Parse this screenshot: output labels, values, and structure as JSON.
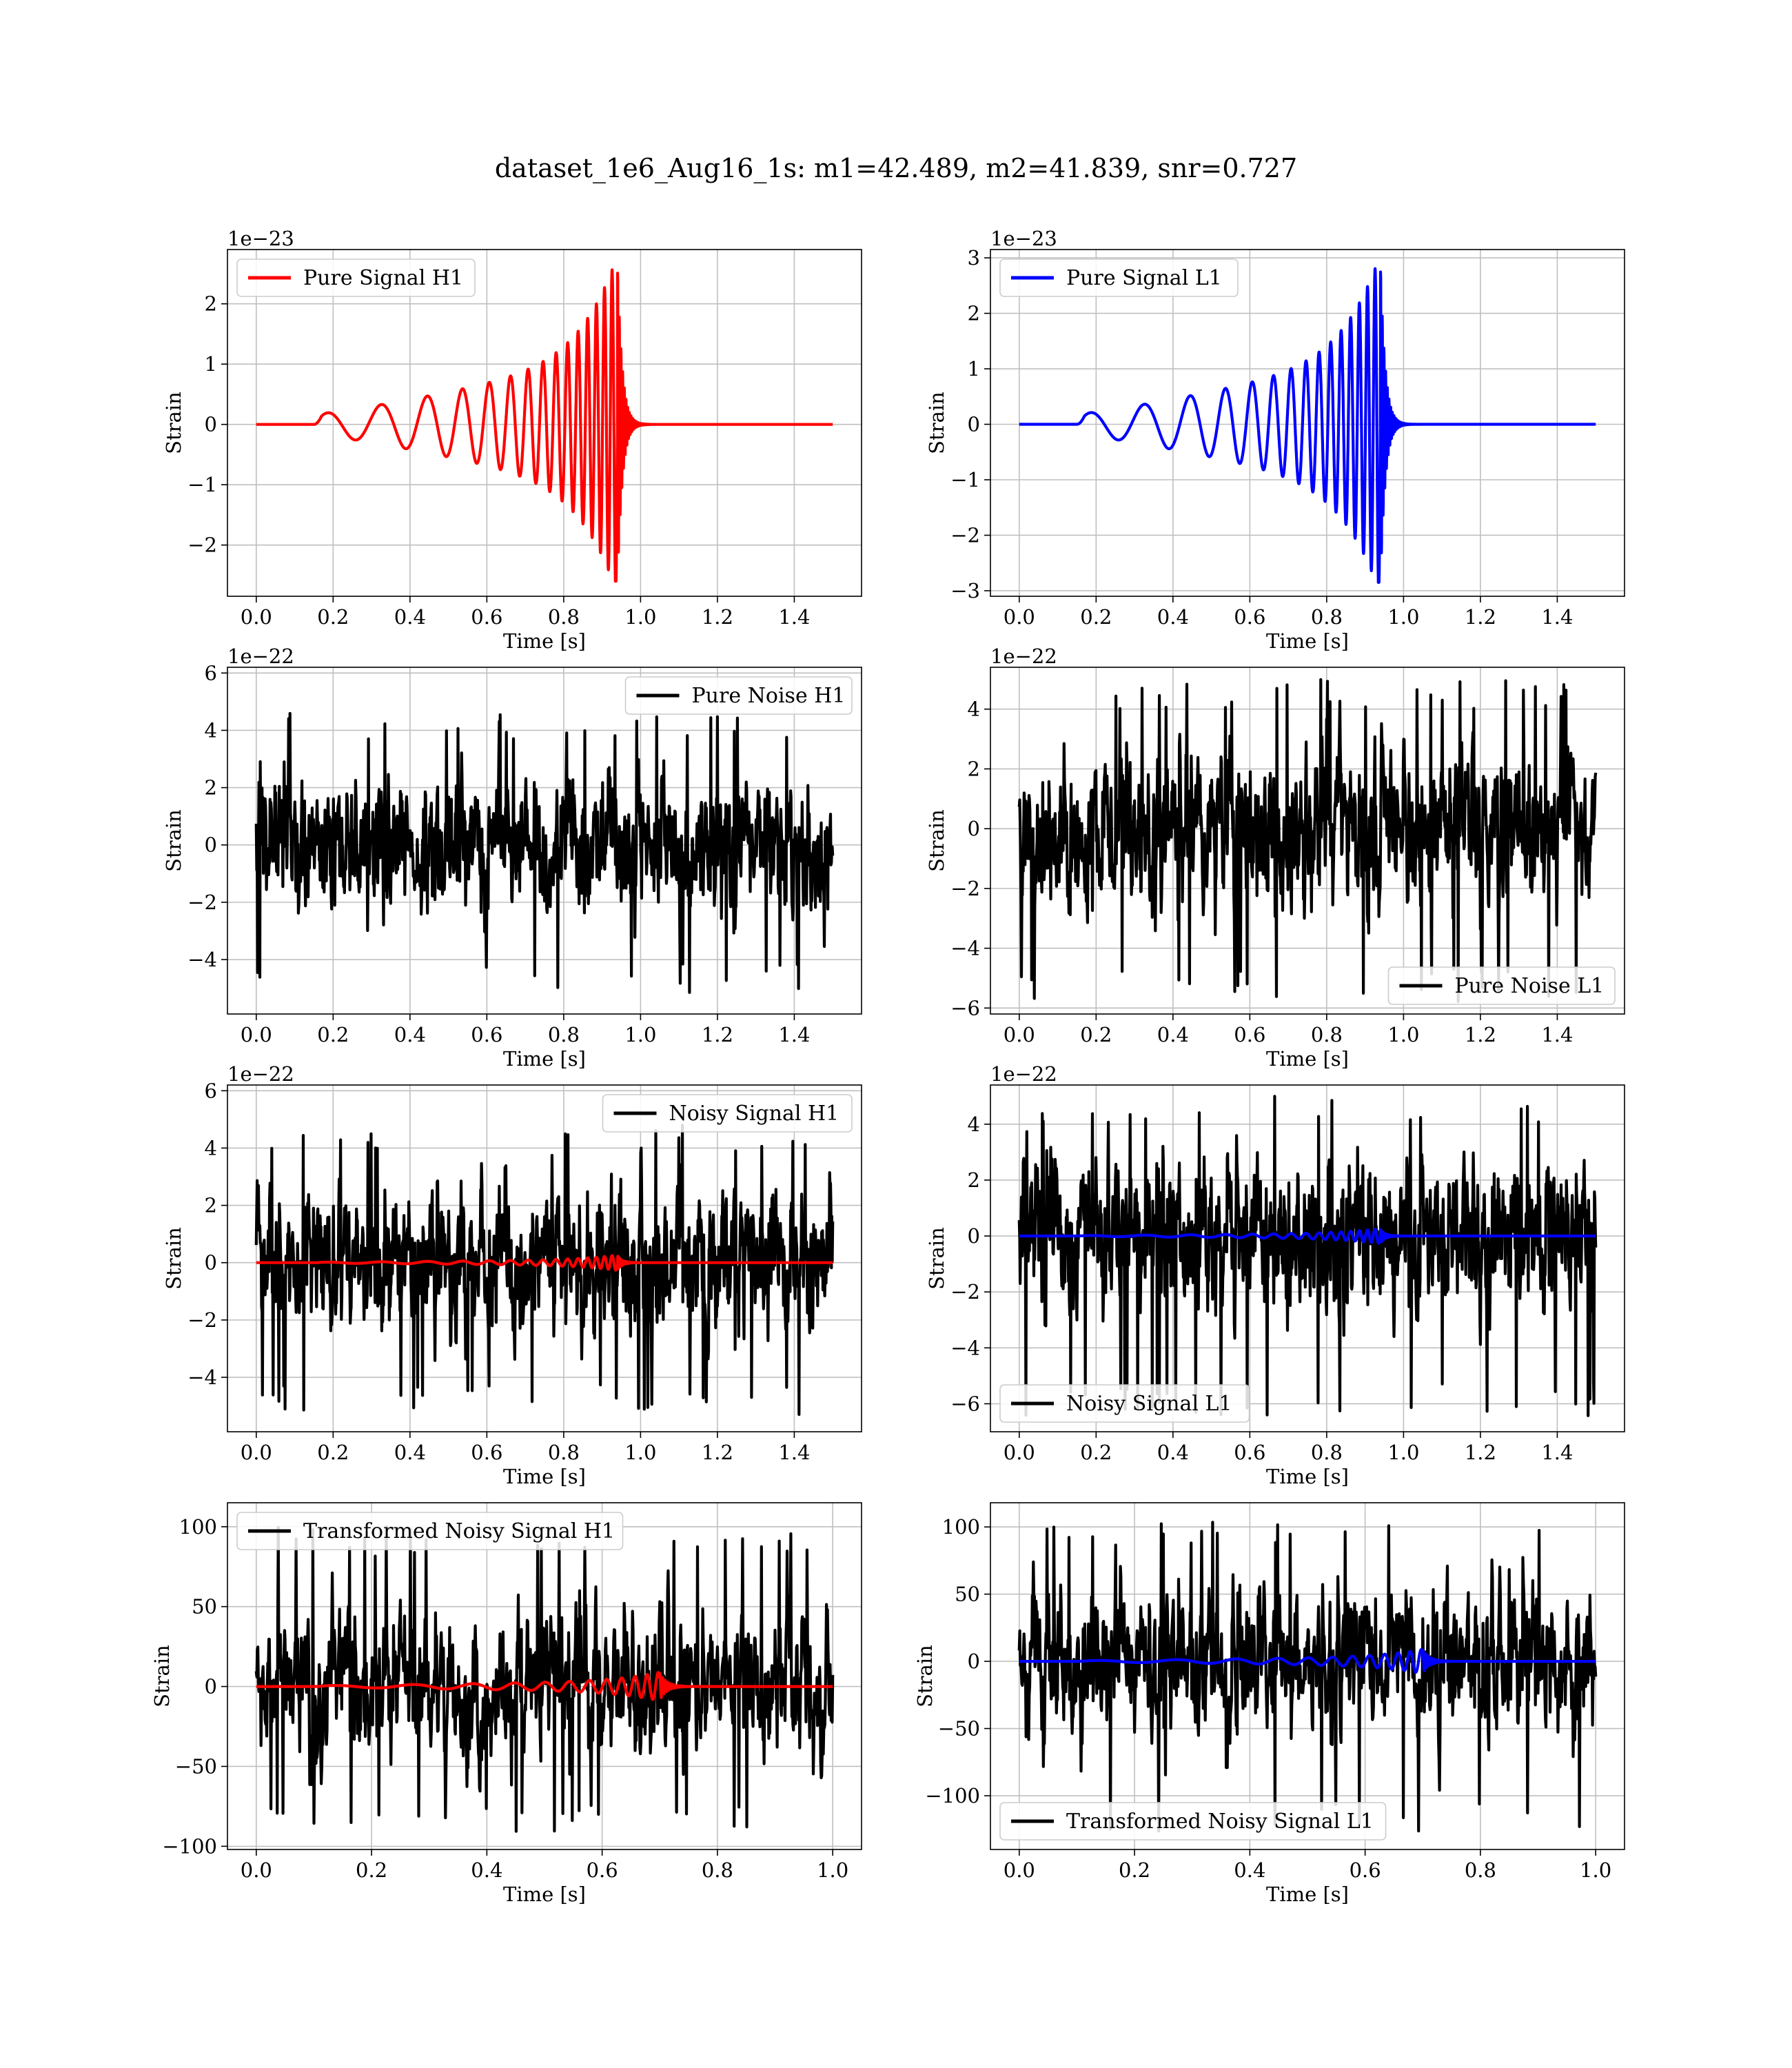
{
  "suptitle": "dataset_1e6_Aug16_1s: m1=42.489, m2=41.839, snr=0.727",
  "chart_data": [
    {
      "type": "line",
      "legend": "Pure Signal H1",
      "legend_loc": "upper-left",
      "color": "#ff0000",
      "kind": "chirp",
      "detector": "H1",
      "xlabel": "Time [s]",
      "ylabel": "Strain",
      "offset_text": "1e−23",
      "xlim": [
        -0.075,
        1.575
      ],
      "ylim": [
        -2.85,
        2.9
      ],
      "xticks": [
        0.0,
        0.2,
        0.4,
        0.6,
        0.8,
        1.0,
        1.2,
        1.4
      ],
      "xtick_labels": [
        "0.0",
        "0.2",
        "0.4",
        "0.6",
        "0.8",
        "1.0",
        "1.2",
        "1.4"
      ],
      "yticks": [
        -2,
        -1,
        0,
        1,
        2
      ],
      "ytick_labels": [
        "−2",
        "−1",
        "0",
        "1",
        "2"
      ],
      "x_range": [
        0.0,
        1.5
      ],
      "merger_time": 0.94,
      "signal_start": 0.15,
      "peak_amplitude": [
        2.65,
        -2.6
      ],
      "grid": true
    },
    {
      "type": "line",
      "legend": "Pure Signal L1",
      "legend_loc": "upper-left",
      "color": "#0000ff",
      "kind": "chirp",
      "detector": "L1",
      "xlabel": "Time [s]",
      "ylabel": "Strain",
      "offset_text": "1e−23",
      "xlim": [
        -0.075,
        1.575
      ],
      "ylim": [
        -3.1,
        3.15
      ],
      "xticks": [
        0.0,
        0.2,
        0.4,
        0.6,
        0.8,
        1.0,
        1.2,
        1.4
      ],
      "xtick_labels": [
        "0.0",
        "0.2",
        "0.4",
        "0.6",
        "0.8",
        "1.0",
        "1.2",
        "1.4"
      ],
      "yticks": [
        -3,
        -2,
        -1,
        0,
        1,
        2,
        3
      ],
      "ytick_labels": [
        "−3",
        "−2",
        "−1",
        "0",
        "1",
        "2",
        "3"
      ],
      "x_range": [
        0.0,
        1.5
      ],
      "merger_time": 0.94,
      "signal_start": 0.15,
      "peak_amplitude": [
        2.9,
        -2.85
      ],
      "grid": true
    },
    {
      "type": "line",
      "legend": "Pure Noise H1",
      "legend_loc": "upper-right",
      "color": "#000000",
      "kind": "noise",
      "xlabel": "Time [s]",
      "ylabel": "Strain",
      "offset_text": "1e−22",
      "xlim": [
        -0.075,
        1.575
      ],
      "ylim": [
        -5.9,
        6.2
      ],
      "xticks": [
        0.0,
        0.2,
        0.4,
        0.6,
        0.8,
        1.0,
        1.2,
        1.4
      ],
      "xtick_labels": [
        "0.0",
        "0.2",
        "0.4",
        "0.6",
        "0.8",
        "1.0",
        "1.2",
        "1.4"
      ],
      "yticks": [
        -4,
        -2,
        0,
        2,
        4,
        6
      ],
      "ytick_labels": [
        "−4",
        "−2",
        "0",
        "2",
        "4",
        "6"
      ],
      "x_range": [
        0.0,
        1.5
      ],
      "noise_max": 4.6,
      "noise_min": -5.2,
      "grid": true
    },
    {
      "type": "line",
      "legend": "Pure Noise L1",
      "legend_loc": "lower-right",
      "color": "#000000",
      "kind": "noise",
      "xlabel": "Time [s]",
      "ylabel": "Strain",
      "offset_text": "1e−22",
      "xlim": [
        -0.075,
        1.575
      ],
      "ylim": [
        -6.2,
        5.4
      ],
      "xticks": [
        0.0,
        0.2,
        0.4,
        0.6,
        0.8,
        1.0,
        1.2,
        1.4
      ],
      "xtick_labels": [
        "0.0",
        "0.2",
        "0.4",
        "0.6",
        "0.8",
        "1.0",
        "1.2",
        "1.4"
      ],
      "yticks": [
        -6,
        -4,
        -2,
        0,
        2,
        4
      ],
      "ytick_labels": [
        "−6",
        "−4",
        "−2",
        "0",
        "2",
        "4"
      ],
      "x_range": [
        0.0,
        1.5
      ],
      "noise_max": 5.0,
      "noise_min": -5.8,
      "grid": true
    },
    {
      "type": "line",
      "legend": "Noisy Signal H1",
      "legend_loc": "upper-right",
      "color": "#000000",
      "overlay_color": "#ff0000",
      "kind": "noisy",
      "xlabel": "Time [s]",
      "ylabel": "Strain",
      "offset_text": "1e−22",
      "xlim": [
        -0.075,
        1.575
      ],
      "ylim": [
        -5.9,
        6.2
      ],
      "xticks": [
        0.0,
        0.2,
        0.4,
        0.6,
        0.8,
        1.0,
        1.2,
        1.4
      ],
      "xtick_labels": [
        "0.0",
        "0.2",
        "0.4",
        "0.6",
        "0.8",
        "1.0",
        "1.2",
        "1.4"
      ],
      "yticks": [
        -4,
        -2,
        0,
        2,
        4,
        6
      ],
      "ytick_labels": [
        "−4",
        "−2",
        "0",
        "2",
        "4",
        "6"
      ],
      "x_range": [
        0.0,
        1.5
      ],
      "merger_time": 0.94,
      "noise_max": 4.8,
      "noise_min": -5.3,
      "grid": true
    },
    {
      "type": "line",
      "legend": "Noisy Signal L1",
      "legend_loc": "lower-left",
      "color": "#000000",
      "overlay_color": "#0000ff",
      "kind": "noisy",
      "xlabel": "Time [s]",
      "ylabel": "Strain",
      "offset_text": "1e−22",
      "xlim": [
        -0.075,
        1.575
      ],
      "ylim": [
        -7.0,
        5.4
      ],
      "xticks": [
        0.0,
        0.2,
        0.4,
        0.6,
        0.8,
        1.0,
        1.2,
        1.4
      ],
      "xtick_labels": [
        "0.0",
        "0.2",
        "0.4",
        "0.6",
        "0.8",
        "1.0",
        "1.2",
        "1.4"
      ],
      "yticks": [
        -6,
        -4,
        -2,
        0,
        2,
        4
      ],
      "ytick_labels": [
        "−6",
        "−4",
        "−2",
        "0",
        "2",
        "4"
      ],
      "x_range": [
        0.0,
        1.5
      ],
      "merger_time": 0.94,
      "noise_max": 5.0,
      "noise_min": -6.5,
      "grid": true
    },
    {
      "type": "line",
      "legend": "Transformed Noisy Signal H1",
      "legend_loc": "upper-left",
      "color": "#000000",
      "overlay_color": "#ff0000",
      "kind": "transformed",
      "xlabel": "Time [s]",
      "ylabel": "Strain",
      "offset_text": "",
      "xlim": [
        -0.05,
        1.05
      ],
      "ylim": [
        -102,
        115
      ],
      "xticks": [
        0.0,
        0.2,
        0.4,
        0.6,
        0.8,
        1.0
      ],
      "xtick_labels": [
        "0.0",
        "0.2",
        "0.4",
        "0.6",
        "0.8",
        "1.0"
      ],
      "yticks": [
        -100,
        -50,
        0,
        50,
        100
      ],
      "ytick_labels": [
        "−100",
        "−50",
        "0",
        "50",
        "100"
      ],
      "x_range": [
        0.0,
        1.0
      ],
      "merger_time": 0.7,
      "noise_max": 100,
      "noise_min": -92,
      "grid": true
    },
    {
      "type": "line",
      "legend": "Transformed Noisy Signal L1",
      "legend_loc": "lower-left",
      "color": "#000000",
      "overlay_color": "#0000ff",
      "kind": "transformed",
      "xlabel": "Time [s]",
      "ylabel": "Strain",
      "offset_text": "",
      "xlim": [
        -0.05,
        1.05
      ],
      "ylim": [
        -140,
        118
      ],
      "xticks": [
        0.0,
        0.2,
        0.4,
        0.6,
        0.8,
        1.0
      ],
      "xtick_labels": [
        "0.0",
        "0.2",
        "0.4",
        "0.6",
        "0.8",
        "1.0"
      ],
      "yticks": [
        -100,
        -50,
        0,
        50,
        100
      ],
      "ytick_labels": [
        "−100",
        "−50",
        "0",
        "50",
        "100"
      ],
      "x_range": [
        0.0,
        1.0
      ],
      "merger_time": 0.7,
      "noise_max": 105,
      "noise_min": -130,
      "grid": true
    }
  ]
}
